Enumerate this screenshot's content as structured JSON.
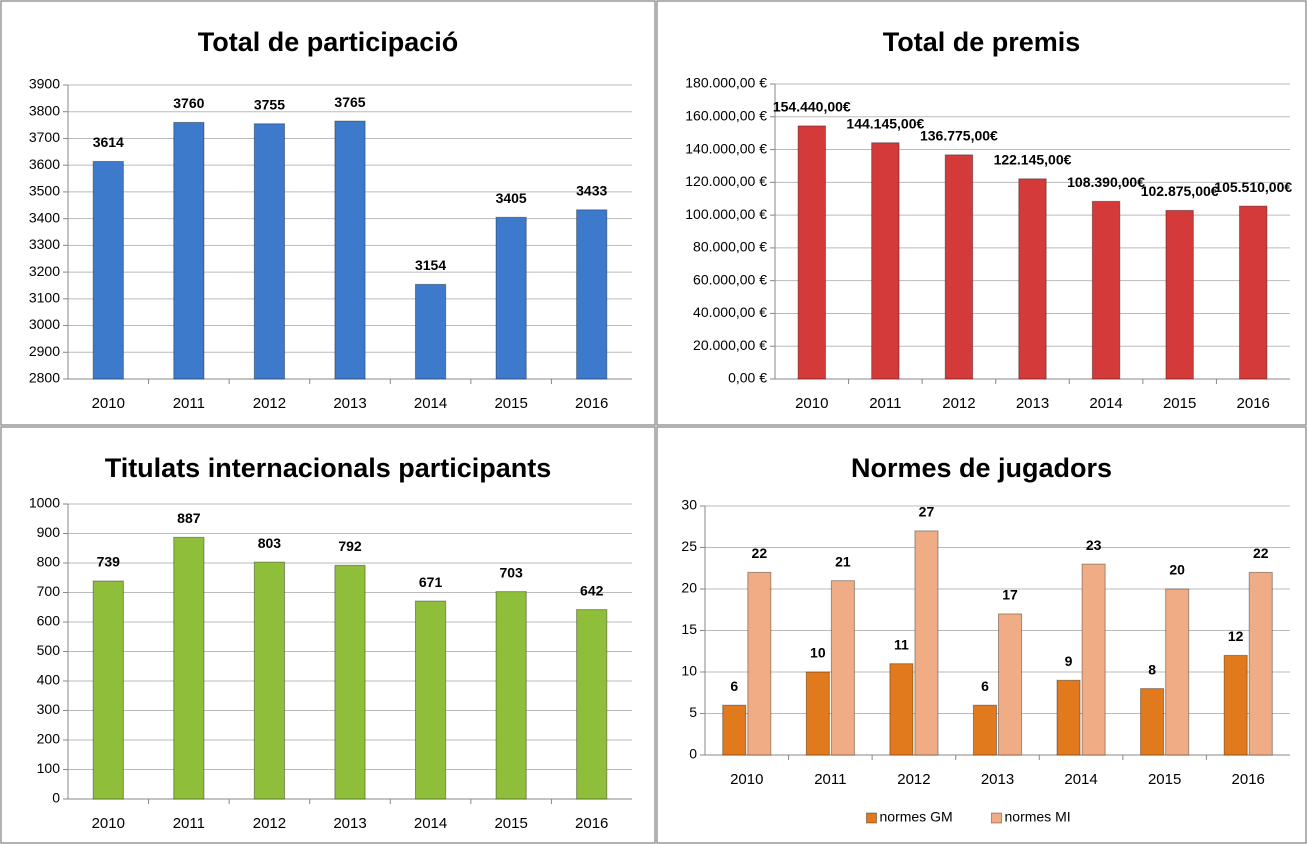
{
  "chart_data": [
    {
      "type": "bar",
      "title": "Total de participació",
      "categories": [
        "2010",
        "2011",
        "2012",
        "2013",
        "2014",
        "2015",
        "2016"
      ],
      "values": [
        3614,
        3760,
        3755,
        3765,
        3154,
        3405,
        3433
      ],
      "color": "#3d7acb",
      "ylim": [
        2800,
        3900
      ],
      "yticks": [
        2800,
        2900,
        3000,
        3100,
        3200,
        3300,
        3400,
        3500,
        3600,
        3700,
        3800,
        3900
      ],
      "grid": true
    },
    {
      "type": "bar",
      "title": "Total de premis",
      "categories": [
        "2010",
        "2011",
        "2012",
        "2013",
        "2014",
        "2015",
        "2016"
      ],
      "values": [
        154440,
        144145,
        136775,
        122145,
        108390,
        102875,
        105510
      ],
      "value_labels": [
        "154.440,00€",
        "144.145,00€",
        "136.775,00€",
        "122.145,00€",
        "108.390,00€",
        "102.875,00€",
        "105.510,00€"
      ],
      "color": "#d43a3a",
      "ylim": [
        0,
        180000
      ],
      "yticks": [
        {
          "value": 0,
          "label": "0,00 €"
        },
        {
          "value": 20000,
          "label": "20.000,00 €"
        },
        {
          "value": 40000,
          "label": "40.000,00 €"
        },
        {
          "value": 60000,
          "label": "60.000,00 €"
        },
        {
          "value": 80000,
          "label": "80.000,00 €"
        },
        {
          "value": 100000,
          "label": "100.000,00 €"
        },
        {
          "value": 120000,
          "label": "120.000,00 €"
        },
        {
          "value": 140000,
          "label": "140.000,00 €"
        },
        {
          "value": 160000,
          "label": "160.000,00 €"
        },
        {
          "value": 180000,
          "label": "180.000,00 €"
        }
      ],
      "grid": true
    },
    {
      "type": "bar",
      "title": "Titulats internacionals participants",
      "categories": [
        "2010",
        "2011",
        "2012",
        "2013",
        "2014",
        "2015",
        "2016"
      ],
      "values": [
        739,
        887,
        803,
        792,
        671,
        703,
        642
      ],
      "color": "#8fbe3a",
      "ylim": [
        0,
        1000
      ],
      "yticks": [
        0,
        100,
        200,
        300,
        400,
        500,
        600,
        700,
        800,
        900,
        1000
      ],
      "grid": true
    },
    {
      "type": "bar",
      "title": "Normes de jugadors",
      "categories": [
        "2010",
        "2011",
        "2012",
        "2013",
        "2014",
        "2015",
        "2016"
      ],
      "series": [
        {
          "name": "normes GM",
          "color": "#e07a1c",
          "values": [
            6,
            10,
            11,
            6,
            9,
            8,
            12
          ]
        },
        {
          "name": "normes MI",
          "color": "#f0ad85",
          "values": [
            22,
            21,
            27,
            17,
            23,
            20,
            22
          ]
        }
      ],
      "ylim": [
        0,
        30
      ],
      "yticks": [
        0,
        5,
        10,
        15,
        20,
        25,
        30
      ],
      "grid": true,
      "legend": "bottom"
    }
  ]
}
